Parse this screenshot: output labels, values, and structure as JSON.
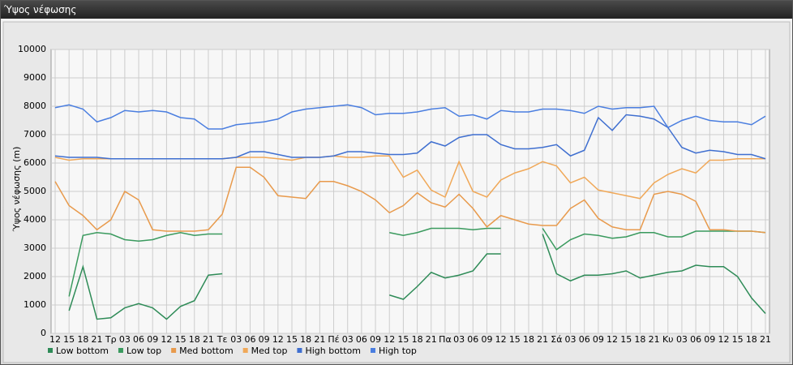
{
  "chart_data": {
    "type": "line",
    "title": "Ύψος νέφωσης",
    "y_label": "Ύψος νέφωσης (m)",
    "categories": [
      "12",
      "15",
      "18",
      "21",
      "Τρ",
      "03",
      "06",
      "09",
      "12",
      "15",
      "18",
      "21",
      "Τε",
      "03",
      "06",
      "09",
      "12",
      "15",
      "18",
      "21",
      "Πέ",
      "03",
      "06",
      "09",
      "12",
      "15",
      "18",
      "21",
      "Πα",
      "03",
      "06",
      "09",
      "12",
      "15",
      "18",
      "21",
      "Σά",
      "03",
      "06",
      "09",
      "12",
      "15",
      "18",
      "21",
      "Κυ",
      "03",
      "06",
      "09",
      "12",
      "15",
      "18",
      "21"
    ],
    "ylim": [
      0,
      10000
    ],
    "yticks": [
      0,
      1000,
      2000,
      3000,
      4000,
      5000,
      6000,
      7000,
      8000,
      9000,
      10000
    ],
    "grid": true,
    "series": [
      {
        "name": "Low bottom",
        "color": "#2e8b57",
        "values": [
          null,
          800,
          2350,
          500,
          550,
          900,
          1050,
          900,
          500,
          950,
          1150,
          2050,
          2100,
          null,
          null,
          null,
          null,
          null,
          null,
          null,
          null,
          null,
          null,
          null,
          1350,
          1200,
          1650,
          2150,
          1950,
          2050,
          2200,
          2800,
          2800,
          null,
          null,
          3500,
          2100,
          1850,
          2050,
          2050,
          2100,
          2200,
          1950,
          2050,
          2150,
          2200,
          2400,
          2350,
          2350,
          2000,
          1250,
          700
        ]
      },
      {
        "name": "Low top",
        "color": "#3a9a5e",
        "values": [
          null,
          1300,
          3450,
          3550,
          3500,
          3300,
          3250,
          3300,
          3450,
          3550,
          3450,
          3500,
          3500,
          null,
          null,
          null,
          null,
          null,
          null,
          null,
          null,
          null,
          null,
          null,
          3550,
          3450,
          3550,
          3700,
          3700,
          3700,
          3650,
          3700,
          3700,
          null,
          null,
          3700,
          2950,
          3300,
          3500,
          3450,
          3350,
          3400,
          3550,
          3550,
          3400,
          3400,
          3600,
          3600,
          3600,
          3600,
          3600,
          3550
        ]
      },
      {
        "name": "Med bottom",
        "color": "#e89a4c",
        "values": [
          5350,
          4500,
          4150,
          3650,
          4000,
          5000,
          4700,
          3650,
          3600,
          3600,
          3600,
          3650,
          4200,
          5850,
          5850,
          5500,
          4850,
          4800,
          4750,
          5350,
          5350,
          5200,
          5000,
          4700,
          4250,
          4500,
          4950,
          4600,
          4450,
          4900,
          4400,
          3750,
          4150,
          4000,
          3850,
          3800,
          3800,
          4400,
          4700,
          4050,
          3750,
          3650,
          3650,
          4900,
          5000,
          4900,
          4650,
          3650,
          3650,
          3600,
          3600,
          3550
        ]
      },
      {
        "name": "Med top",
        "color": "#f0a858",
        "values": [
          6200,
          6100,
          6150,
          6150,
          6150,
          6150,
          6150,
          6150,
          6150,
          6150,
          6150,
          6150,
          6150,
          6200,
          6200,
          6200,
          6150,
          6100,
          6200,
          6200,
          6250,
          6200,
          6200,
          6250,
          6250,
          5500,
          5750,
          5050,
          4800,
          6050,
          5000,
          4800,
          5400,
          5650,
          5800,
          6050,
          5900,
          5300,
          5500,
          5050,
          4950,
          4850,
          4750,
          5300,
          5600,
          5800,
          5650,
          6100,
          6100,
          6150,
          6150,
          6150
        ]
      },
      {
        "name": "High bottom",
        "color": "#3f6fd0",
        "values": [
          6250,
          6200,
          6200,
          6200,
          6150,
          6150,
          6150,
          6150,
          6150,
          6150,
          6150,
          6150,
          6150,
          6200,
          6400,
          6400,
          6300,
          6200,
          6200,
          6200,
          6250,
          6400,
          6400,
          6350,
          6300,
          6300,
          6350,
          6750,
          6600,
          6900,
          7000,
          7000,
          6650,
          6500,
          6500,
          6550,
          6650,
          6250,
          6450,
          7600,
          7150,
          7700,
          7650,
          7550,
          7250,
          6550,
          6350,
          6450,
          6400,
          6300,
          6300,
          6150
        ]
      },
      {
        "name": "High top",
        "color": "#4a7ee0",
        "values": [
          7950,
          8050,
          7900,
          7450,
          7600,
          7850,
          7800,
          7850,
          7800,
          7600,
          7550,
          7200,
          7200,
          7350,
          7400,
          7450,
          7550,
          7800,
          7900,
          7950,
          8000,
          8050,
          7950,
          7700,
          7750,
          7750,
          7800,
          7900,
          7950,
          7650,
          7700,
          7550,
          7850,
          7800,
          7800,
          7900,
          7900,
          7850,
          7750,
          8000,
          7900,
          7950,
          7950,
          8000,
          7250,
          7500,
          7650,
          7500,
          7450,
          7450,
          7350,
          7650
        ]
      }
    ]
  }
}
